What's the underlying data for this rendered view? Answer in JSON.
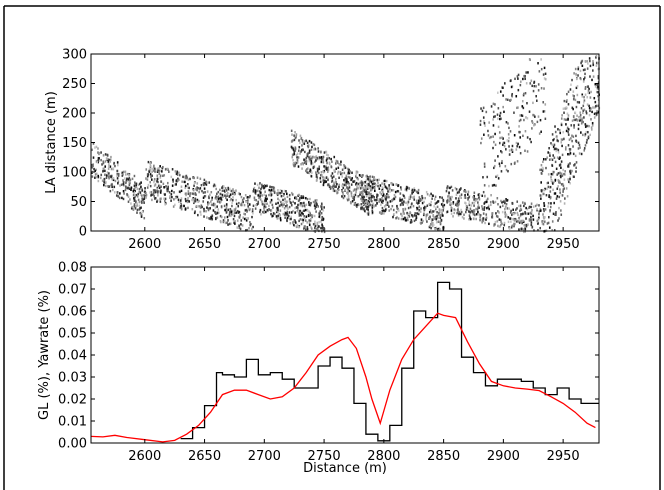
{
  "chart_data": [
    {
      "type": "scatter",
      "xlabel": "",
      "ylabel": "LA distance (m)",
      "xlim": [
        2555,
        2980
      ],
      "ylim": [
        0,
        300
      ],
      "xticks": [
        2600,
        2650,
        2700,
        2750,
        2800,
        2850,
        2900,
        2950
      ],
      "yticks": [
        0,
        50,
        100,
        150,
        200,
        250,
        300
      ],
      "grid": false,
      "series": [
        {
          "color": "#222222",
          "bands": [
            {
              "x": [
                2555,
                2600
              ],
              "y": [
                125,
                50
              ],
              "spread": 30,
              "density": 260
            },
            {
              "x": [
                2600,
                2690
              ],
              "y": [
                90,
                30
              ],
              "spread": 32,
              "density": 520
            },
            {
              "x": [
                2690,
                2750
              ],
              "y": [
                60,
                22
              ],
              "spread": 28,
              "density": 360
            },
            {
              "x": [
                2722,
                2790
              ],
              "y": [
                145,
                55
              ],
              "spread": 30,
              "density": 440
            },
            {
              "x": [
                2780,
                2850
              ],
              "y": [
                70,
                30
              ],
              "spread": 30,
              "density": 460
            },
            {
              "x": [
                2850,
                2930
              ],
              "y": [
                55,
                20
              ],
              "spread": 26,
              "density": 360
            },
            {
              "x": [
                2880,
                2935
              ],
              "y": [
                130,
                250
              ],
              "spread": 80,
              "density": 220
            },
            {
              "x": [
                2930,
                2980
              ],
              "y": [
                20,
                300
              ],
              "spread": 90,
              "density": 520
            }
          ]
        }
      ]
    },
    {
      "type": "line",
      "xlabel": "Distance (m)",
      "ylabel": "GL (%), Yawrate (%)",
      "xlim": [
        2555,
        2980
      ],
      "ylim": [
        0.0,
        0.08
      ],
      "xticks": [
        2600,
        2650,
        2700,
        2750,
        2800,
        2850,
        2900,
        2950
      ],
      "yticks": [
        "0.00",
        "0.01",
        "0.02",
        "0.03",
        "0.04",
        "0.05",
        "0.06",
        "0.07",
        "0.08"
      ],
      "grid": false,
      "series": [
        {
          "style": "step",
          "color": "#000000",
          "x": [
            2630,
            2640,
            2650,
            2660,
            2665,
            2675,
            2685,
            2695,
            2705,
            2715,
            2725,
            2735,
            2745,
            2755,
            2765,
            2775,
            2785,
            2795,
            2805,
            2815,
            2825,
            2835,
            2845,
            2855,
            2865,
            2875,
            2885,
            2895,
            2905,
            2915,
            2925,
            2935,
            2945,
            2955,
            2965,
            2975
          ],
          "values": [
            0.002,
            0.007,
            0.017,
            0.032,
            0.031,
            0.03,
            0.038,
            0.031,
            0.032,
            0.029,
            0.025,
            0.025,
            0.035,
            0.039,
            0.034,
            0.018,
            0.004,
            0.001,
            0.008,
            0.034,
            0.06,
            0.057,
            0.073,
            0.07,
            0.039,
            0.032,
            0.026,
            0.029,
            0.029,
            0.028,
            0.025,
            0.022,
            0.025,
            0.02,
            0.018,
            0.018
          ]
        },
        {
          "style": "line",
          "color": "#ff0000",
          "x": [
            2555,
            2565,
            2575,
            2585,
            2600,
            2615,
            2625,
            2635,
            2645,
            2655,
            2665,
            2675,
            2685,
            2695,
            2705,
            2715,
            2725,
            2735,
            2745,
            2755,
            2765,
            2770,
            2777,
            2785,
            2790,
            2797,
            2805,
            2815,
            2825,
            2835,
            2845,
            2850,
            2860,
            2870,
            2880,
            2890,
            2900,
            2910,
            2920,
            2930,
            2940,
            2950,
            2960,
            2970,
            2977
          ],
          "values": [
            0.003,
            0.0028,
            0.0035,
            0.0025,
            0.0015,
            0.0005,
            0.0012,
            0.004,
            0.008,
            0.014,
            0.022,
            0.024,
            0.024,
            0.022,
            0.02,
            0.021,
            0.025,
            0.032,
            0.04,
            0.044,
            0.047,
            0.048,
            0.043,
            0.03,
            0.02,
            0.009,
            0.024,
            0.038,
            0.047,
            0.053,
            0.059,
            0.058,
            0.057,
            0.046,
            0.036,
            0.028,
            0.026,
            0.025,
            0.0245,
            0.0238,
            0.021,
            0.018,
            0.014,
            0.009,
            0.007
          ]
        }
      ]
    }
  ]
}
